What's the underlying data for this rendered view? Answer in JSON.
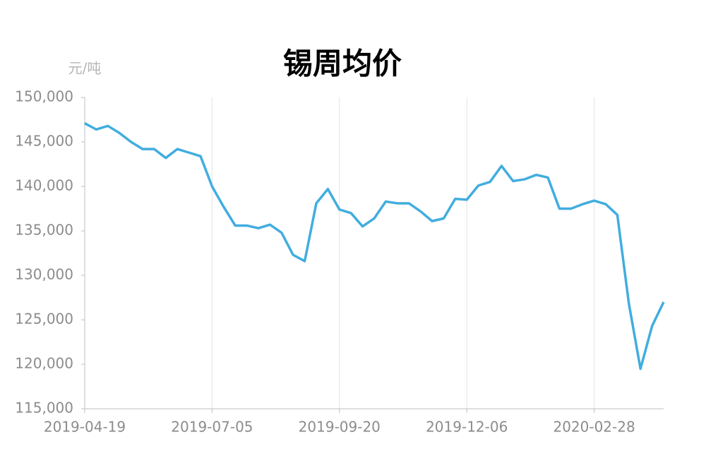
{
  "chart_data": {
    "type": "line",
    "title": "锡周均价",
    "y_label": "元/吨",
    "categories": [
      "2019-04-19",
      null,
      null,
      null,
      null,
      null,
      null,
      null,
      null,
      null,
      null,
      "2019-07-05",
      null,
      null,
      null,
      null,
      null,
      null,
      null,
      null,
      null,
      null,
      "2019-09-20",
      null,
      null,
      null,
      null,
      null,
      null,
      null,
      null,
      null,
      null,
      "2019-12-06",
      null,
      null,
      null,
      null,
      null,
      null,
      null,
      null,
      null,
      null,
      "2020-02-28",
      null,
      null,
      null,
      null,
      null,
      null
    ],
    "series": [
      {
        "name": "锡周均价",
        "color": "#41addf",
        "values": [
          147100,
          146400,
          146800,
          146000,
          145000,
          144200,
          144200,
          143200,
          144200,
          143800,
          143400,
          140000,
          137700,
          135600,
          135600,
          135300,
          135700,
          134800,
          132300,
          131600,
          138100,
          139700,
          137400,
          137000,
          135500,
          136400,
          138300,
          138100,
          138100,
          137200,
          136100,
          136400,
          138600,
          138500,
          140100,
          140500,
          142300,
          140600,
          140800,
          141300,
          141000,
          137500,
          137500,
          138000,
          138400,
          138000,
          136800,
          126800,
          119500,
          124300,
          127000
        ]
      }
    ],
    "ylim": [
      115000,
      150000
    ],
    "yticks": [
      {
        "value": 115000,
        "label": "115,000"
      },
      {
        "value": 120000,
        "label": "120,000"
      },
      {
        "value": 125000,
        "label": "125,000"
      },
      {
        "value": 130000,
        "label": "130,000"
      },
      {
        "value": 135000,
        "label": "135,000"
      },
      {
        "value": 140000,
        "label": "140,000"
      },
      {
        "value": 145000,
        "label": "145,000"
      },
      {
        "value": 150000,
        "label": "150,000"
      }
    ],
    "grid": true
  }
}
